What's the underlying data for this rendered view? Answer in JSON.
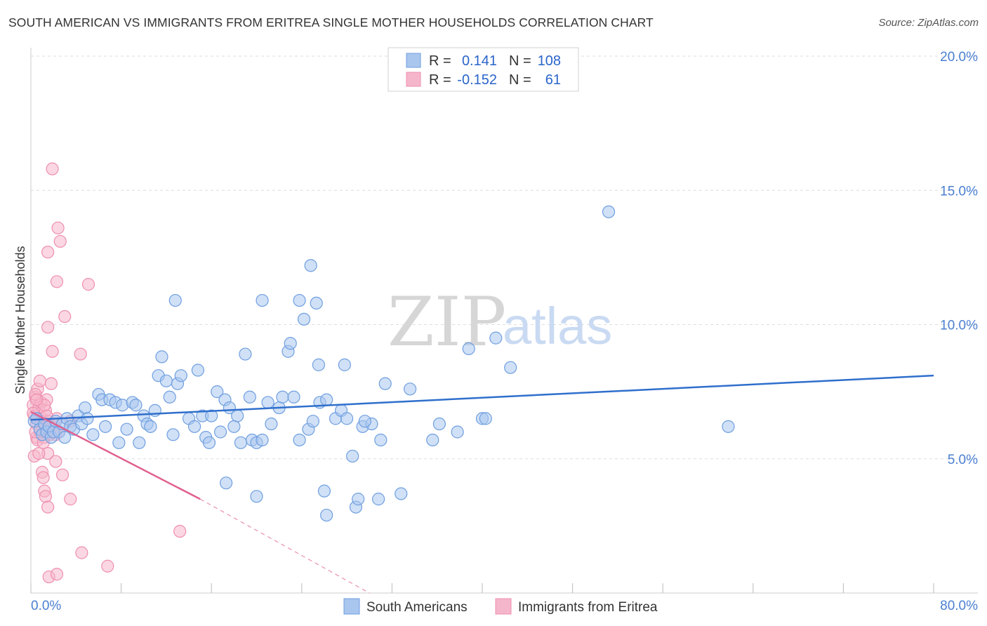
{
  "title": "SOUTH AMERICAN VS IMMIGRANTS FROM ERITREA SINGLE MOTHER HOUSEHOLDS CORRELATION CHART",
  "source": "Source: ZipAtlas.com",
  "watermark": {
    "zip": "ZIP",
    "atlas": "atlas"
  },
  "legend": {
    "row1": {
      "r_label": "R =",
      "r_value": "0.141",
      "n_label": "N =",
      "n_value": "108"
    },
    "row2": {
      "r_label": "R =",
      "r_value": "-0.152",
      "n_label": "N =",
      "n_value": "61"
    }
  },
  "colors": {
    "blue_fill": "#a9c6ee",
    "blue_stroke": "#6f9fe0",
    "blue_line": "#2f6fcc",
    "pink_fill": "#f5b6cb",
    "pink_stroke": "#ee8fb0",
    "pink_line": "#e0608f",
    "grid": "#dddddd",
    "axis_label": "#4a7fd1"
  },
  "chart_data": {
    "type": "scatter",
    "title": "SOUTH AMERICAN VS IMMIGRANTS FROM ERITREA SINGLE MOTHER HOUSEHOLDS CORRELATION CHART",
    "xlabel": "",
    "ylabel": "Single Mother Households",
    "xlim": [
      0,
      80
    ],
    "ylim": [
      0,
      20
    ],
    "x_tick_labels": [
      "0.0%",
      "80.0%"
    ],
    "y_ticks": [
      5,
      10,
      15,
      20
    ],
    "y_tick_labels": [
      "5.0%",
      "10.0%",
      "15.0%",
      "20.0%"
    ],
    "grid": true,
    "series": [
      {
        "name": "South Americans",
        "color": "#a9c6ee",
        "r": 0.141,
        "n": 108,
        "trend": {
          "x0": 0,
          "y0": 6.45,
          "x1": 80,
          "y1": 8.1
        },
        "points": [
          [
            0.3,
            6.4
          ],
          [
            0.5,
            6.5
          ],
          [
            0.8,
            6.1
          ],
          [
            1.0,
            5.9
          ],
          [
            1.2,
            6.3
          ],
          [
            1.4,
            6.0
          ],
          [
            1.6,
            6.2
          ],
          [
            1.8,
            5.8
          ],
          [
            2.0,
            6.0
          ],
          [
            2.2,
            6.4
          ],
          [
            2.5,
            6.0
          ],
          [
            2.8,
            6.3
          ],
          [
            3.0,
            5.8
          ],
          [
            3.2,
            6.5
          ],
          [
            3.5,
            6.2
          ],
          [
            3.8,
            6.1
          ],
          [
            4.2,
            6.6
          ],
          [
            4.5,
            6.3
          ],
          [
            4.8,
            6.9
          ],
          [
            5.0,
            6.5
          ],
          [
            5.5,
            5.9
          ],
          [
            6.0,
            7.4
          ],
          [
            6.3,
            7.2
          ],
          [
            6.6,
            6.2
          ],
          [
            7.0,
            7.2
          ],
          [
            7.5,
            7.1
          ],
          [
            7.8,
            5.6
          ],
          [
            8.1,
            7.0
          ],
          [
            8.5,
            6.1
          ],
          [
            9.0,
            7.1
          ],
          [
            9.3,
            7.0
          ],
          [
            9.6,
            5.6
          ],
          [
            10.0,
            6.6
          ],
          [
            10.3,
            6.3
          ],
          [
            10.6,
            6.2
          ],
          [
            11.0,
            6.8
          ],
          [
            11.3,
            8.1
          ],
          [
            11.6,
            8.8
          ],
          [
            12.0,
            7.9
          ],
          [
            12.3,
            7.3
          ],
          [
            12.6,
            5.9
          ],
          [
            13.0,
            7.8
          ],
          [
            13.3,
            8.1
          ],
          [
            14.0,
            6.5
          ],
          [
            14.5,
            6.2
          ],
          [
            14.8,
            8.3
          ],
          [
            15.2,
            6.6
          ],
          [
            15.5,
            5.8
          ],
          [
            15.8,
            5.6
          ],
          [
            16.0,
            6.6
          ],
          [
            16.5,
            7.5
          ],
          [
            16.8,
            6.0
          ],
          [
            17.2,
            7.2
          ],
          [
            17.6,
            6.9
          ],
          [
            18.0,
            6.2
          ],
          [
            18.3,
            6.6
          ],
          [
            18.6,
            5.6
          ],
          [
            19.0,
            8.9
          ],
          [
            19.4,
            7.3
          ],
          [
            19.6,
            5.7
          ],
          [
            20.0,
            5.6
          ],
          [
            20.5,
            5.7
          ],
          [
            21.0,
            7.1
          ],
          [
            21.3,
            6.3
          ],
          [
            22.0,
            6.9
          ],
          [
            22.3,
            7.3
          ],
          [
            22.8,
            9.0
          ],
          [
            23.0,
            9.3
          ],
          [
            23.3,
            7.3
          ],
          [
            23.8,
            5.7
          ],
          [
            24.2,
            10.2
          ],
          [
            24.6,
            6.1
          ],
          [
            25.0,
            6.4
          ],
          [
            25.6,
            7.1
          ],
          [
            26.2,
            7.2
          ],
          [
            27.0,
            6.5
          ],
          [
            27.5,
            6.8
          ],
          [
            28.0,
            6.5
          ],
          [
            28.5,
            5.1
          ],
          [
            28.8,
            3.2
          ],
          [
            29.0,
            3.5
          ],
          [
            29.4,
            6.2
          ],
          [
            30.2,
            6.3
          ],
          [
            30.8,
            3.5
          ],
          [
            31.0,
            5.7
          ],
          [
            12.8,
            10.9
          ],
          [
            20.5,
            10.9
          ],
          [
            23.8,
            10.9
          ],
          [
            24.8,
            12.2
          ],
          [
            25.3,
            10.8
          ],
          [
            25.5,
            8.5
          ],
          [
            27.8,
            8.5
          ],
          [
            29.6,
            6.4
          ],
          [
            31.4,
            7.8
          ],
          [
            32.8,
            3.7
          ],
          [
            33.6,
            7.6
          ],
          [
            35.6,
            5.7
          ],
          [
            36.2,
            6.3
          ],
          [
            37.8,
            6.0
          ],
          [
            38.8,
            9.1
          ],
          [
            40.0,
            6.5
          ],
          [
            40.3,
            6.5
          ],
          [
            41.2,
            9.5
          ],
          [
            42.5,
            8.4
          ],
          [
            51.2,
            14.2
          ],
          [
            61.8,
            6.2
          ],
          [
            17.3,
            4.1
          ],
          [
            20.0,
            3.6
          ],
          [
            26.0,
            3.8
          ],
          [
            26.2,
            2.9
          ]
        ]
      },
      {
        "name": "Immigrants from Eritrea",
        "color": "#f5b6cb",
        "r": -0.152,
        "n": 61,
        "trend": {
          "x0": 0,
          "y0": 6.75,
          "x1": 15,
          "y1": 3.5,
          "dashed_to": {
            "x": 30,
            "y": 0
          }
        },
        "points": [
          [
            0.2,
            7.0
          ],
          [
            0.3,
            6.6
          ],
          [
            0.4,
            7.3
          ],
          [
            0.5,
            6.3
          ],
          [
            0.5,
            5.8
          ],
          [
            0.6,
            7.6
          ],
          [
            0.7,
            6.9
          ],
          [
            0.8,
            6.0
          ],
          [
            0.9,
            7.1
          ],
          [
            1.0,
            6.5
          ],
          [
            0.3,
            5.1
          ],
          [
            0.6,
            5.7
          ],
          [
            0.8,
            7.9
          ],
          [
            1.1,
            6.2
          ],
          [
            1.2,
            5.8
          ],
          [
            1.3,
            6.8
          ],
          [
            1.4,
            7.2
          ],
          [
            1.5,
            6.4
          ],
          [
            1.6,
            6.0
          ],
          [
            1.7,
            5.9
          ],
          [
            1.0,
            4.5
          ],
          [
            1.1,
            4.3
          ],
          [
            1.2,
            3.8
          ],
          [
            1.3,
            3.6
          ],
          [
            1.5,
            5.2
          ],
          [
            1.6,
            6.1
          ],
          [
            1.8,
            7.8
          ],
          [
            2.0,
            6.3
          ],
          [
            2.2,
            5.9
          ],
          [
            2.3,
            6.5
          ],
          [
            1.5,
            3.2
          ],
          [
            2.2,
            4.9
          ],
          [
            2.8,
            4.4
          ],
          [
            3.5,
            3.5
          ],
          [
            4.5,
            1.5
          ],
          [
            6.8,
            1.0
          ],
          [
            13.2,
            2.3
          ],
          [
            1.6,
            0.6
          ],
          [
            2.3,
            0.7
          ],
          [
            0.4,
            7.4
          ],
          [
            0.2,
            6.7
          ],
          [
            0.4,
            6.0
          ],
          [
            0.7,
            5.2
          ],
          [
            0.9,
            6.4
          ],
          [
            1.1,
            5.6
          ],
          [
            1.4,
            6.6
          ],
          [
            1.8,
            6.2
          ],
          [
            2.5,
            6.0
          ],
          [
            1.2,
            7.0
          ],
          [
            0.5,
            7.2
          ],
          [
            1.9,
            15.8
          ],
          [
            2.4,
            13.6
          ],
          [
            2.6,
            13.1
          ],
          [
            1.5,
            12.7
          ],
          [
            2.3,
            11.6
          ],
          [
            5.1,
            11.5
          ],
          [
            3.0,
            10.3
          ],
          [
            1.5,
            9.9
          ],
          [
            1.9,
            9.0
          ],
          [
            4.4,
            8.9
          ],
          [
            3.5,
            6.4
          ]
        ]
      }
    ]
  },
  "bottom_legend": {
    "series1": "South Americans",
    "series2": "Immigrants from Eritrea"
  }
}
